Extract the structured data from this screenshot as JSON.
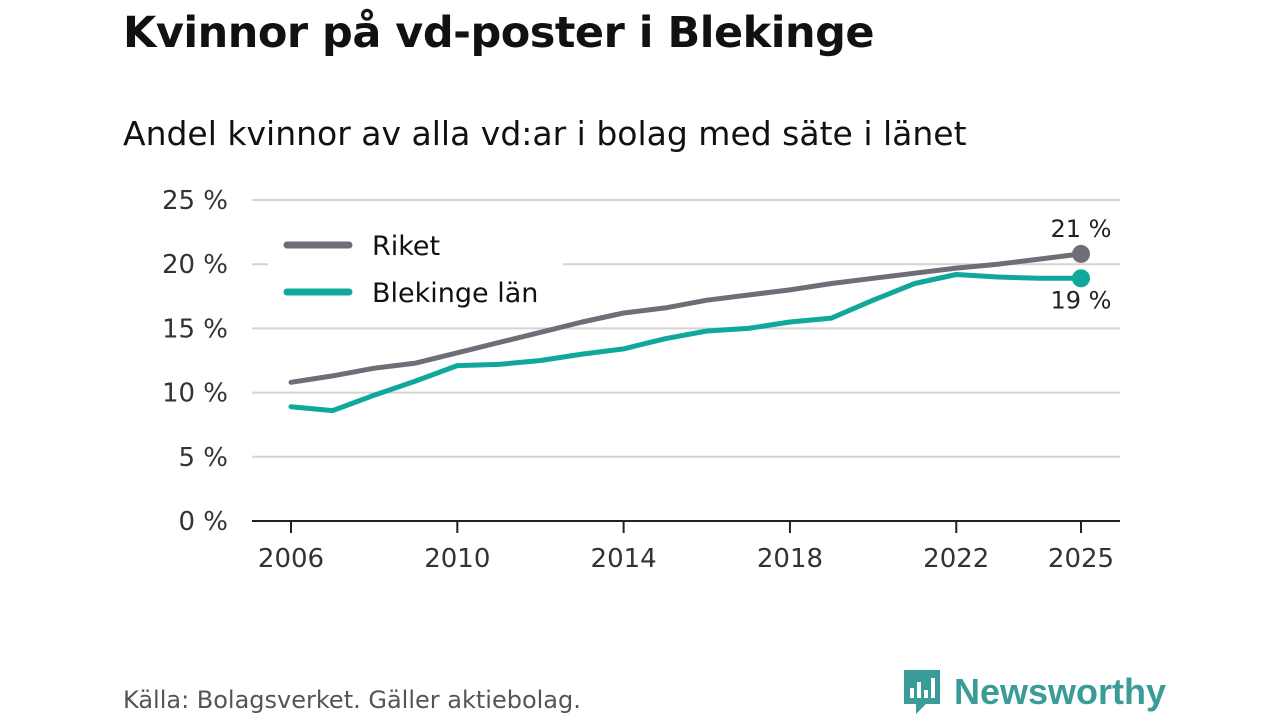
{
  "header": {
    "title": "Kvinnor på vd-poster i Blekinge",
    "subtitle": "Andel kvinnor av alla vd:ar i bolag med säte i länet"
  },
  "footer": {
    "source": "Källa: Bolagsverket. Gäller aktiebolag.",
    "brand": "Newsworthy"
  },
  "colors": {
    "riket": "#6e6e76",
    "blekinge": "#0fa89a",
    "grid": "#d4d4d4",
    "axis": "#222222",
    "brand": "#3a9c97"
  },
  "chart_data": {
    "type": "line",
    "title": "Kvinnor på vd-poster i Blekinge",
    "subtitle": "Andel kvinnor av alla vd:ar i bolag med säte i länet",
    "xlabel": "",
    "ylabel": "",
    "x": [
      2006,
      2007,
      2008,
      2009,
      2010,
      2011,
      2012,
      2013,
      2014,
      2015,
      2016,
      2017,
      2018,
      2019,
      2020,
      2021,
      2022,
      2023,
      2024,
      2025
    ],
    "xticks": [
      "2006",
      "2010",
      "2014",
      "2018",
      "2022",
      "2025"
    ],
    "yticks": [
      "0 %",
      "5 %",
      "10 %",
      "15 %",
      "20 %",
      "25 %"
    ],
    "ylim": [
      0,
      25
    ],
    "grid": true,
    "legend_position": "top-left",
    "series": [
      {
        "name": "Riket",
        "color": "#6e6e76",
        "values": [
          10.8,
          11.3,
          11.9,
          12.3,
          13.1,
          13.9,
          14.7,
          15.5,
          16.2,
          16.6,
          17.2,
          17.6,
          18.0,
          18.5,
          18.9,
          19.3,
          19.7,
          20.0,
          20.4,
          20.8
        ],
        "end_label": "21 %"
      },
      {
        "name": "Blekinge län",
        "color": "#0fa89a",
        "values": [
          8.9,
          8.6,
          9.8,
          10.9,
          12.1,
          12.2,
          12.5,
          13.0,
          13.4,
          14.2,
          14.8,
          15.0,
          15.5,
          15.8,
          17.2,
          18.5,
          19.2,
          19.0,
          18.9,
          18.9
        ],
        "end_label": "19 %"
      }
    ]
  }
}
